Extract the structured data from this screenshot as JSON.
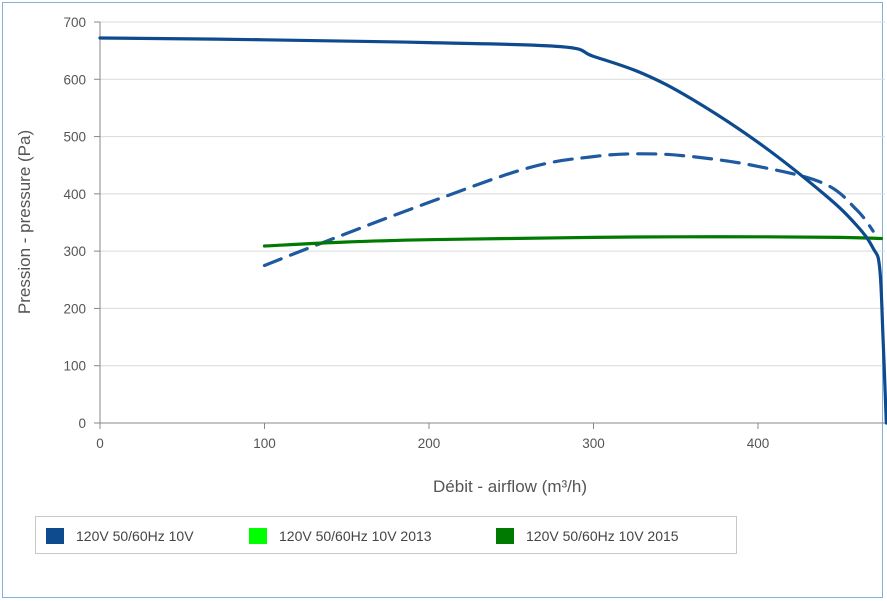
{
  "chart_data": {
    "type": "line",
    "xlabel": "Débit - airflow (m³/h)",
    "ylabel": "Pression - pressure (Pa)",
    "xlim": [
      0,
      475
    ],
    "ylim": [
      0,
      700
    ],
    "x_ticks": [
      0,
      100,
      200,
      300,
      400
    ],
    "y_ticks": [
      0,
      100,
      200,
      300,
      400,
      500,
      600,
      700
    ],
    "grid": "horizontal",
    "legend_position": "bottom",
    "series": [
      {
        "name": "120V 50/60Hz 10V",
        "color": "#0d4a8e",
        "dash": "solid",
        "x": [
          0,
          100,
          200,
          280,
          300,
          330,
          360,
          400,
          440,
          460,
          470,
          474,
          476,
          478
        ],
        "y": [
          672,
          669,
          664,
          657,
          640,
          610,
          565,
          490,
          400,
          345,
          305,
          270,
          150,
          0
        ]
      },
      {
        "name": "120V 50/60Hz 10V 2013",
        "color": "#00ff00",
        "dash": "dashed",
        "x": [
          100,
          140,
          200,
          260,
          300,
          330,
          360,
          400,
          440,
          460,
          470
        ],
        "y": [
          275,
          320,
          385,
          445,
          465,
          470,
          465,
          448,
          418,
          372,
          335
        ]
      },
      {
        "name": "120V 50/60Hz 10V 2015",
        "color": "#007a00",
        "dash": "solid",
        "x": [
          100,
          150,
          200,
          250,
          300,
          350,
          400,
          450,
          475
        ],
        "y": [
          309,
          316,
          320,
          322,
          324,
          325,
          325,
          324,
          322
        ]
      }
    ]
  }
}
